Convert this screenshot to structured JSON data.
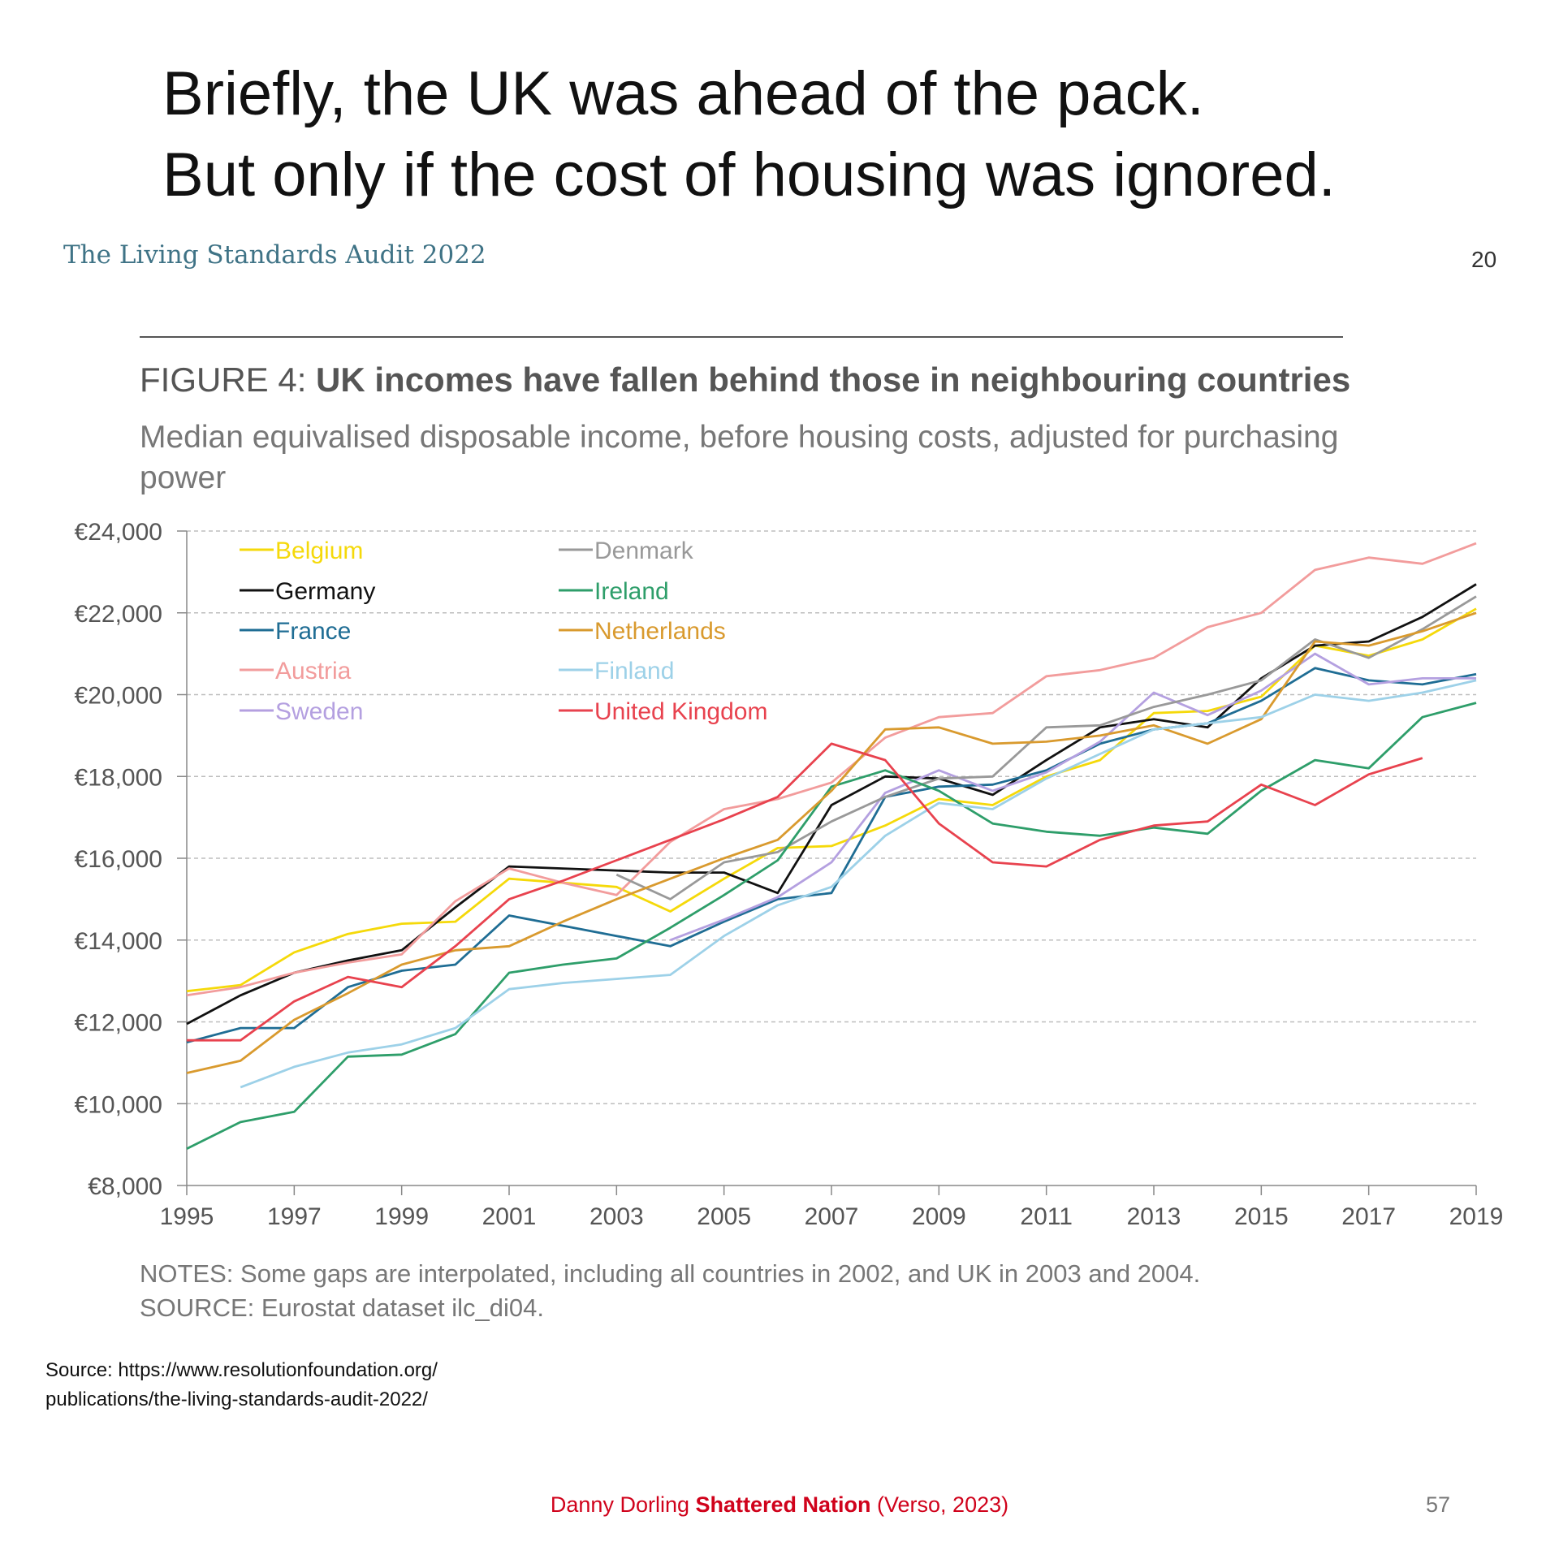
{
  "slide": {
    "title_line1": "Briefly, the UK was ahead of the pack.",
    "title_line2": "But only if the cost of housing was ignored.",
    "report_header": "The Living Standards Audit 2022",
    "report_page": "20",
    "source_line1": "Source:  https://www.resolutionfoundation.org/",
    "source_line2": "publications/the-living-standards-audit-2022/",
    "credit_author": "Danny Dorling ",
    "credit_book": "Shattered Nation",
    "credit_publisher": " (Verso, 2023)",
    "slide_number": "57"
  },
  "figure": {
    "label": "FIGURE 4: ",
    "title": "UK incomes have fallen behind those in neighbouring countries",
    "subtitle": "Median equivalised disposable income, before housing costs, adjusted for purchasing power",
    "notes": "NOTES: Some gaps are interpolated, including all countries in 2002, and UK in 2003 and 2004.",
    "source": "SOURCE: Eurostat dataset ilc_di04."
  },
  "chart_data": {
    "type": "line",
    "title": "UK incomes have fallen behind those in neighbouring countries",
    "xlabel": "",
    "ylabel": "",
    "xlim": [
      1995,
      2019
    ],
    "ylim": [
      8000,
      24000
    ],
    "grid": true,
    "legend_position": "top-left",
    "x_ticks": [
      1995,
      1997,
      1999,
      2001,
      2003,
      2005,
      2007,
      2009,
      2011,
      2013,
      2015,
      2017,
      2019
    ],
    "x_tick_labels": [
      "1995",
      "1997",
      "1999",
      "2001",
      "2003",
      "2005",
      "2007",
      "2009",
      "2011",
      "2013",
      "2015",
      "2017",
      "2019"
    ],
    "y_ticks": [
      8000,
      10000,
      12000,
      14000,
      16000,
      18000,
      20000,
      22000,
      24000
    ],
    "y_tick_labels": [
      "€8,000",
      "€10,000",
      "€12,000",
      "€14,000",
      "€16,000",
      "€18,000",
      "€20,000",
      "€22,000",
      "€24,000"
    ],
    "x": [
      1995,
      1996,
      1997,
      1998,
      1999,
      2000,
      2001,
      2002,
      2003,
      2004,
      2005,
      2006,
      2007,
      2008,
      2009,
      2010,
      2011,
      2012,
      2013,
      2014,
      2015,
      2016,
      2017,
      2018,
      2019
    ],
    "series": [
      {
        "name": "Belgium",
        "color": "#f5d90a",
        "values": [
          12750,
          12900,
          13700,
          14150,
          14400,
          14450,
          15500,
          15400,
          15300,
          14700,
          15500,
          16250,
          16300,
          16800,
          17450,
          17300,
          18000,
          18400,
          19550,
          19600,
          19950,
          21200,
          20950,
          21350,
          22100
        ]
      },
      {
        "name": "Germany",
        "color": "#111111",
        "values": [
          11950,
          12650,
          13200,
          13500,
          13750,
          14800,
          15800,
          15750,
          15700,
          15650,
          15650,
          15150,
          17300,
          18000,
          17950,
          17550,
          18400,
          19200,
          19400,
          19200,
          20400,
          21200,
          21300,
          21900,
          22700
        ]
      },
      {
        "name": "France",
        "color": "#1f6d94",
        "values": [
          11500,
          11850,
          11850,
          12850,
          13250,
          13400,
          14600,
          14350,
          14100,
          13850,
          14450,
          15000,
          15150,
          17500,
          17750,
          17800,
          18150,
          18800,
          19150,
          19300,
          19850,
          20650,
          20350,
          20250,
          20500
        ]
      },
      {
        "name": "Austria",
        "color": "#f29c9c",
        "values": [
          12650,
          12850,
          13200,
          13450,
          13650,
          14950,
          15750,
          15400,
          15100,
          16400,
          17200,
          17450,
          17850,
          18950,
          19450,
          19550,
          20450,
          20600,
          20900,
          21650,
          22000,
          23050,
          23350,
          23200,
          23700
        ]
      },
      {
        "name": "Sweden",
        "color": "#b4a0e0",
        "values": [
          null,
          null,
          null,
          null,
          null,
          null,
          null,
          null,
          null,
          14000,
          14500,
          15050,
          15900,
          17600,
          18150,
          17650,
          18100,
          18850,
          20050,
          19500,
          20100,
          21000,
          20250,
          20400,
          20400
        ]
      },
      {
        "name": "Denmark",
        "color": "#999999",
        "values": [
          null,
          null,
          null,
          null,
          null,
          null,
          null,
          null,
          15600,
          15000,
          15900,
          16150,
          16900,
          17500,
          17950,
          18000,
          19200,
          19250,
          19700,
          20000,
          20350,
          21350,
          20900,
          21600,
          22400
        ]
      },
      {
        "name": "Ireland",
        "color": "#2e9e6a",
        "values": [
          8900,
          9550,
          9800,
          11150,
          11200,
          11700,
          13200,
          13400,
          13550,
          14300,
          15100,
          15950,
          17750,
          18150,
          17650,
          16850,
          16650,
          16550,
          16750,
          16600,
          17650,
          18400,
          18200,
          19450,
          19800
        ]
      },
      {
        "name": "Netherlands",
        "color": "#d99a2e",
        "values": [
          10750,
          11050,
          12050,
          12700,
          13400,
          13750,
          13850,
          14450,
          15000,
          15500,
          16000,
          16450,
          17650,
          19150,
          19200,
          18800,
          18850,
          19000,
          19250,
          18800,
          19400,
          21300,
          21200,
          21550,
          22000
        ]
      },
      {
        "name": "Finland",
        "color": "#9dd1e8",
        "values": [
          null,
          10400,
          10900,
          11250,
          11450,
          11850,
          12800,
          12950,
          13050,
          13150,
          14100,
          14850,
          15300,
          16550,
          17350,
          17200,
          17950,
          18550,
          19150,
          19300,
          19450,
          20000,
          19850,
          20050,
          20350
        ]
      },
      {
        "name": "United Kingdom",
        "color": "#e8424e",
        "values": [
          11550,
          11550,
          12500,
          13100,
          12850,
          13850,
          15000,
          15450,
          15950,
          16450,
          16950,
          17500,
          18800,
          18400,
          16850,
          15900,
          15800,
          16450,
          16800,
          16900,
          17800,
          17300,
          18050,
          18450,
          null
        ]
      }
    ]
  }
}
